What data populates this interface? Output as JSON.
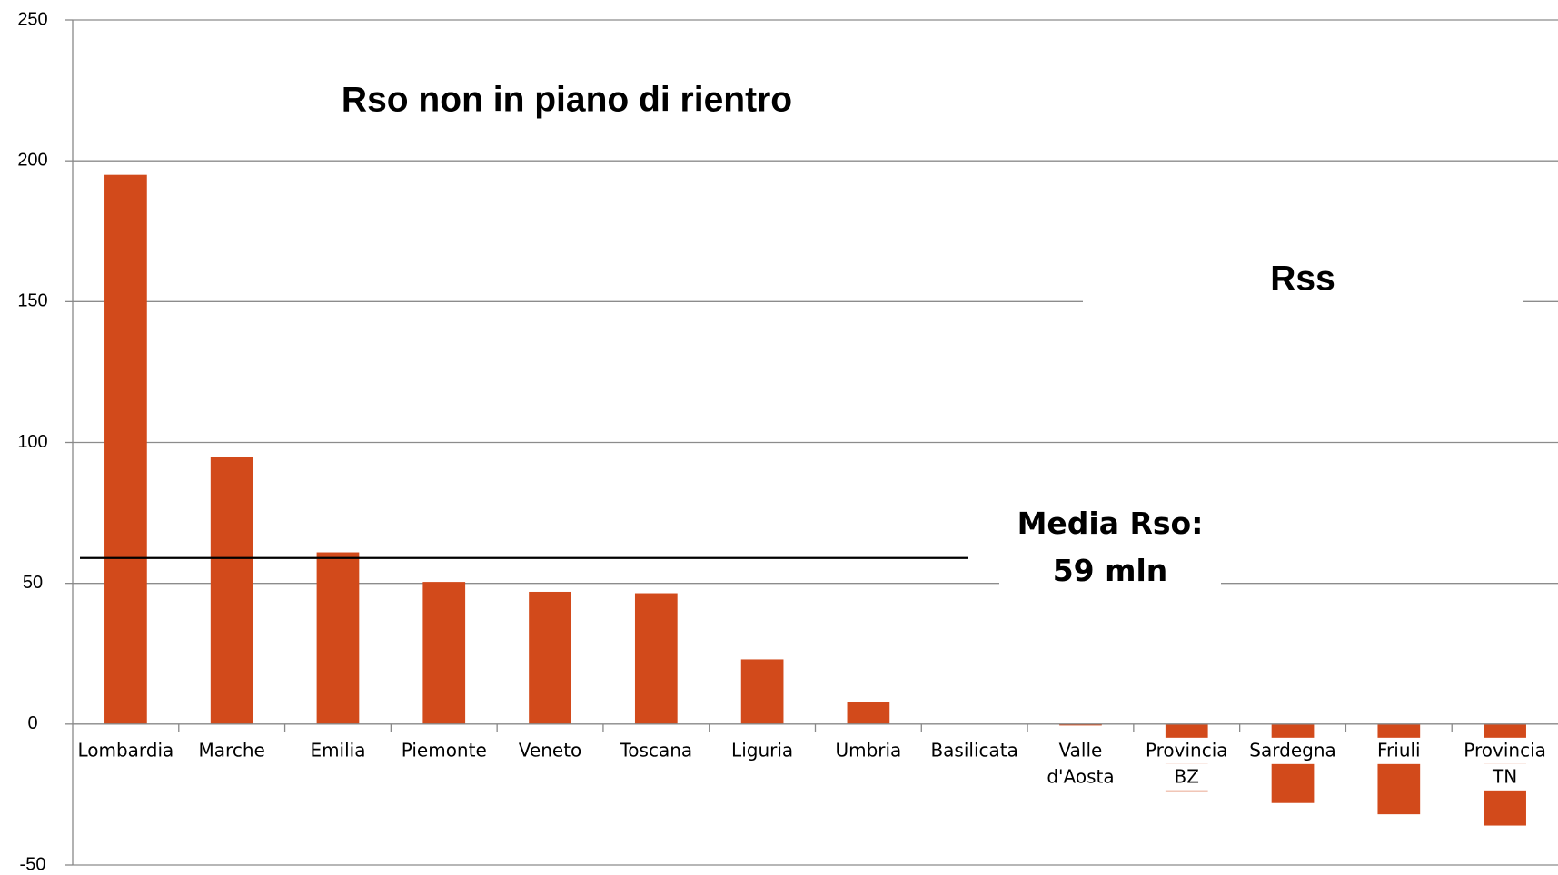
{
  "chart_data": {
    "type": "bar",
    "categories": [
      [
        "Lombardia"
      ],
      [
        "Marche"
      ],
      [
        "Emilia"
      ],
      [
        "Piemonte"
      ],
      [
        "Veneto"
      ],
      [
        "Toscana"
      ],
      [
        "Liguria"
      ],
      [
        "Umbria"
      ],
      [
        "Basilicata"
      ],
      [
        "Valle",
        "d'Aosta"
      ],
      [
        "Provincia",
        "BZ"
      ],
      [
        "Sardegna"
      ],
      [
        "Friuli"
      ],
      [
        "Provincia",
        "TN"
      ]
    ],
    "values": [
      195,
      95,
      61,
      50.5,
      47,
      46.5,
      23,
      8,
      0,
      -0.5,
      -24,
      -28,
      -32,
      -36
    ],
    "color": "#d24a1b",
    "ylim": [
      -50,
      250
    ],
    "yticks": [
      -50,
      0,
      50,
      100,
      150,
      200,
      250
    ],
    "grid": true,
    "annotations": [
      "Rso non in piano di rientro",
      "Rss"
    ],
    "mean_line": {
      "value": 59,
      "label": [
        "Media Rso:",
        "59 mln"
      ]
    }
  }
}
